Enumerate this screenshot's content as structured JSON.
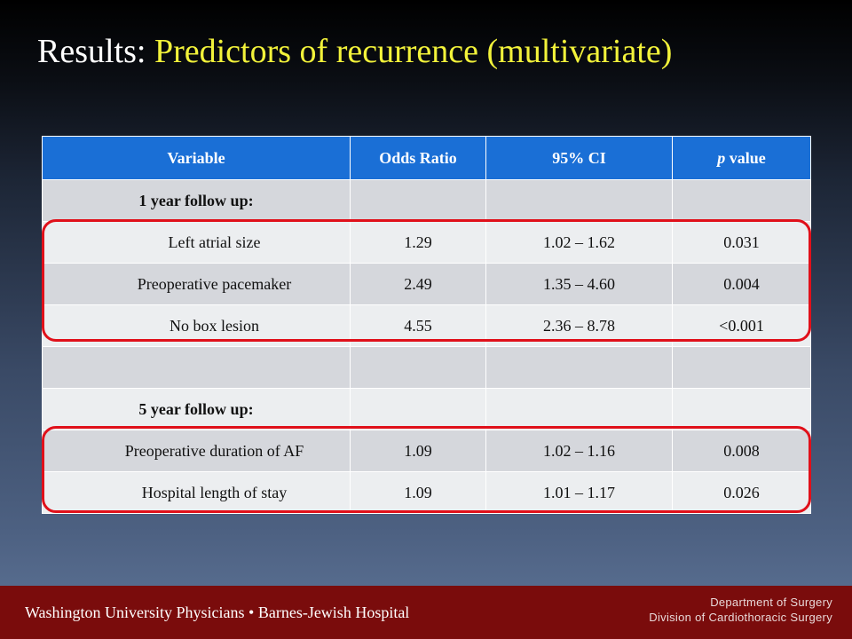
{
  "slide": {
    "title_prefix": "Results: ",
    "title_highlight": "Predictors of recurrence  (multivariate)"
  },
  "table": {
    "headers": [
      "Variable",
      "Odds Ratio",
      "95% CI",
      "value"
    ],
    "p_prefix": "p",
    "rows": [
      [
        "1 year follow up:",
        "",
        "",
        ""
      ],
      [
        "Left atrial size",
        "1.29",
        "1.02 – 1.62",
        "0.031"
      ],
      [
        "Preoperative pacemaker",
        "2.49",
        "1.35 – 4.60",
        "0.004"
      ],
      [
        "No box lesion",
        "4.55",
        "2.36 – 8.78",
        "<0.001"
      ],
      [
        "",
        "",
        "",
        ""
      ],
      [
        "5 year follow up:",
        "",
        "",
        ""
      ],
      [
        "Preoperative duration of AF",
        "1.09",
        "1.02 – 1.16",
        "0.008"
      ],
      [
        "Hospital length of stay",
        "1.09",
        "1.01 – 1.17",
        "0.026"
      ]
    ]
  },
  "colors": {
    "header_bg": "#1a6fd6",
    "highlight_outline": "#e0101a",
    "title_highlight": "#f2f23a",
    "footer_bg": "#7a0c0c"
  },
  "footer": {
    "left": "Washington University Physicians • Barnes-Jewish Hospital",
    "right_line1": "Department of Surgery",
    "right_line2": "Division of Cardiothoracic Surgery"
  }
}
